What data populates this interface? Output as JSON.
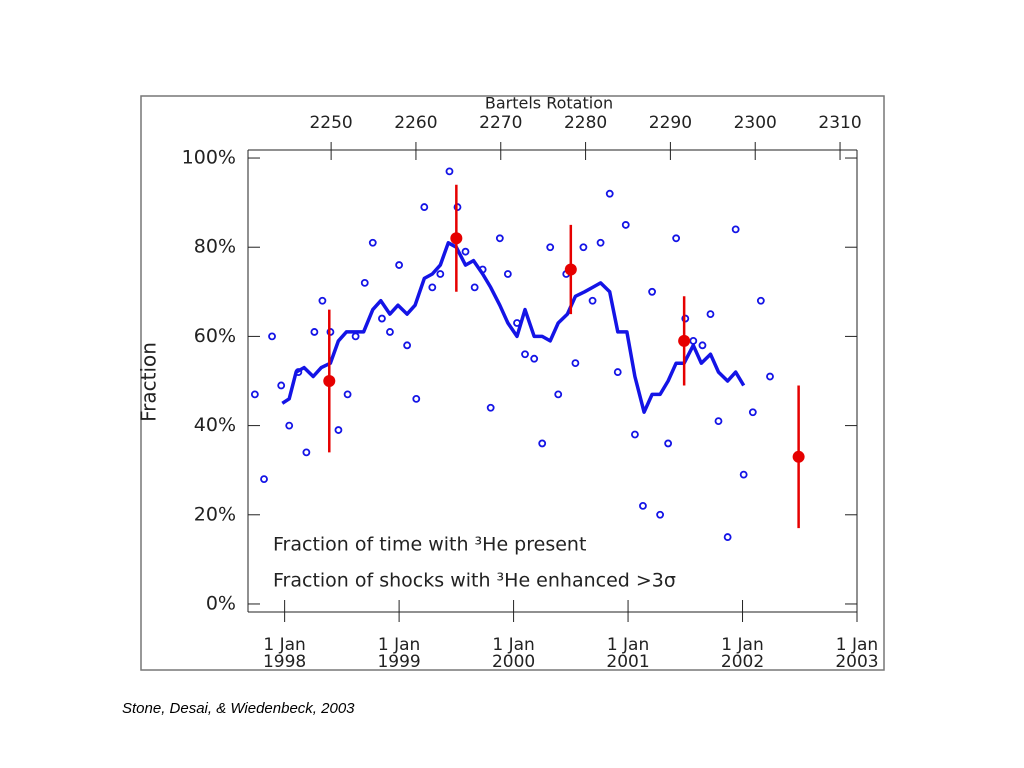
{
  "chart_data": {
    "type": "scatter",
    "ylabel": "Fraction",
    "x2label": "Bartels Rotation",
    "footer": "Stone, Desai, & Wiedenbeck, 2003",
    "xlim": [
      1997.68,
      2003.0
    ],
    "xticks": [
      {
        "value": 1998,
        "label": "1 Jan 1998"
      },
      {
        "value": 1999,
        "label": "1 Jan 1999"
      },
      {
        "value": 2000,
        "label": "1 Jan 2000"
      },
      {
        "value": 2001,
        "label": "1 Jan 2001"
      },
      {
        "value": 2002,
        "label": "1 Jan 2002"
      },
      {
        "value": 2003,
        "label": "1 Jan 2003"
      }
    ],
    "x2lim": [
      2240.2,
      2312.0
    ],
    "x2ticks": [
      2250,
      2260,
      2270,
      2280,
      2290,
      2300,
      2310
    ],
    "ylim": [
      -1.8,
      101.8
    ],
    "yticks": [
      {
        "value": 0,
        "label": "0%"
      },
      {
        "value": 20,
        "label": "20%"
      },
      {
        "value": 40,
        "label": "40%"
      },
      {
        "value": 60,
        "label": "60%"
      },
      {
        "value": 80,
        "label": "80%"
      },
      {
        "value": 100,
        "label": "100%"
      }
    ],
    "series": [
      {
        "name": "Fraction of time with ³He present",
        "color": "#1414e6",
        "markers": {
          "x": [
            1997.74,
            1997.82,
            1997.89,
            1997.97,
            1998.04,
            1998.12,
            1998.19,
            1998.26,
            1998.33,
            1998.4,
            1998.47,
            1998.55,
            1998.62,
            1998.7,
            1998.77,
            1998.85,
            1998.92,
            1999.0,
            1999.07,
            1999.15,
            1999.22,
            1999.29,
            1999.36,
            1999.44,
            1999.51,
            1999.58,
            1999.66,
            1999.73,
            1999.8,
            1999.88,
            1999.95,
            2000.03,
            2000.1,
            2000.18,
            2000.25,
            2000.32,
            2000.39,
            2000.46,
            2000.54,
            2000.61,
            2000.69,
            2000.76,
            2000.84,
            2000.91,
            2000.98,
            2001.06,
            2001.13,
            2001.21,
            2001.28,
            2001.35,
            2001.42,
            2001.5,
            2001.57,
            2001.65,
            2001.72,
            2001.79,
            2001.87,
            2001.94,
            2002.01,
            2002.09,
            2002.16,
            2002.24
          ],
          "values": [
            47,
            28,
            60,
            49,
            40,
            52,
            34,
            61,
            68,
            61,
            39,
            47,
            60,
            72,
            81,
            64,
            61,
            76,
            58,
            46,
            89,
            71,
            74,
            97,
            89,
            79,
            71,
            75,
            44,
            82,
            74,
            63,
            56,
            55,
            36,
            80,
            47,
            74,
            54,
            80,
            68,
            81,
            92,
            52,
            85,
            38,
            22,
            70,
            20,
            36,
            82,
            64,
            59,
            58,
            65,
            41,
            15,
            84,
            29,
            43,
            68,
            51
          ]
        },
        "line": {
          "x": [
            1997.98,
            1998.04,
            1998.1,
            1998.17,
            1998.25,
            1998.32,
            1998.4,
            1998.47,
            1998.54,
            1998.62,
            1998.69,
            1998.77,
            1998.84,
            1998.92,
            1998.99,
            1999.07,
            1999.14,
            1999.22,
            1999.29,
            1999.36,
            1999.43,
            1999.5,
            1999.58,
            1999.65,
            1999.73,
            1999.8,
            1999.88,
            1999.95,
            2000.03,
            2000.1,
            2000.18,
            2000.25,
            2000.32,
            2000.39,
            2000.47,
            2000.54,
            2000.62,
            2000.69,
            2000.76,
            2000.84,
            2000.91,
            2000.99,
            2001.06,
            2001.14,
            2001.21,
            2001.28,
            2001.35,
            2001.42,
            2001.49,
            2001.57,
            2001.64,
            2001.72,
            2001.79,
            2001.87,
            2001.94,
            2002.01
          ],
          "values": [
            45,
            46,
            52,
            53,
            51,
            53,
            54,
            59,
            61,
            61,
            61,
            66,
            68,
            65,
            67,
            65,
            67,
            73,
            74,
            76,
            81,
            80,
            76,
            77,
            74,
            71,
            67,
            63,
            60,
            66,
            60,
            60,
            59,
            63,
            65,
            69,
            70,
            71,
            72,
            70,
            61,
            61,
            51,
            43,
            47,
            47,
            50,
            54,
            54,
            58,
            54,
            56,
            52,
            50,
            52,
            49
          ]
        }
      },
      {
        "name": "Fraction of shocks with ³He enhanced >3σ",
        "color": "#e60000",
        "x": [
          1998.39,
          1999.5,
          2000.5,
          2001.49,
          2002.49
        ],
        "values": [
          50,
          82,
          75,
          59,
          33
        ],
        "errors": [
          16,
          12,
          10,
          10,
          16
        ]
      }
    ]
  }
}
